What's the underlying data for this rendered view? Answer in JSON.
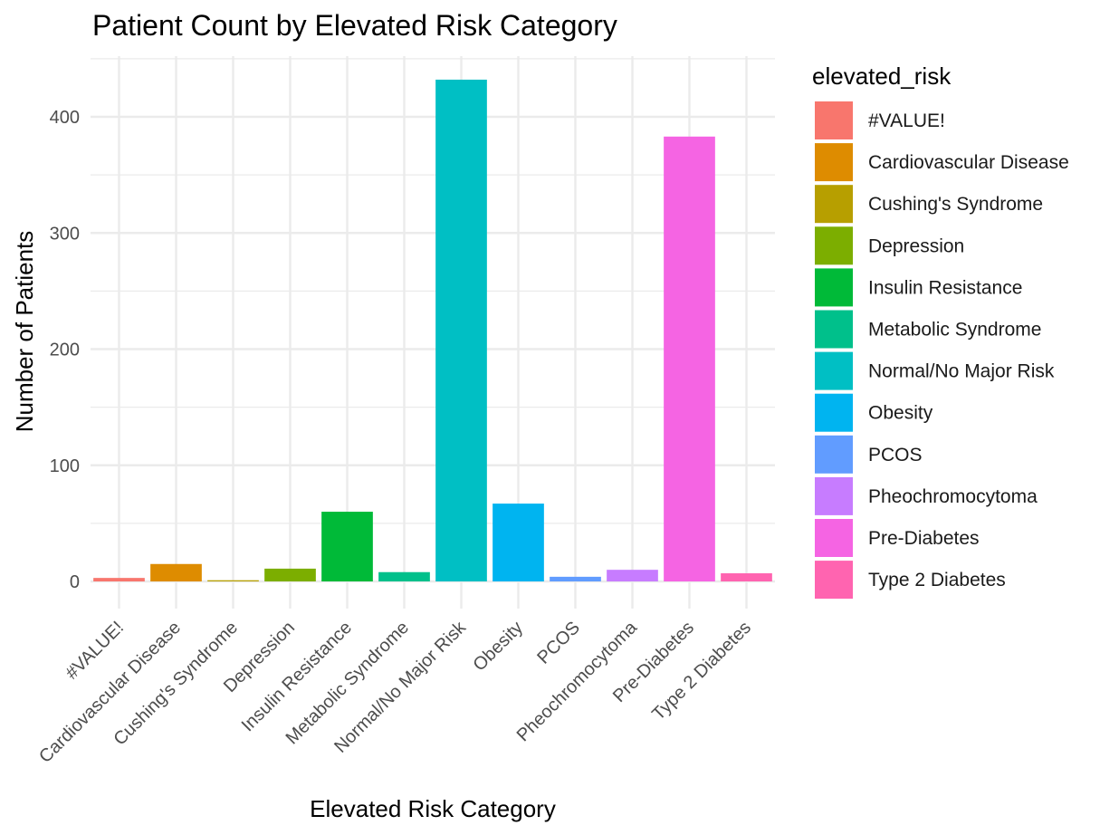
{
  "chart_data": {
    "type": "bar",
    "title": "Patient Count by Elevated Risk Category",
    "xlabel": "Elevated Risk Category",
    "ylabel": "Number of Patients",
    "ylim": [
      -20,
      452
    ],
    "y_ticks": [
      0,
      100,
      200,
      300,
      400
    ],
    "grid": true,
    "legend_title": "elevated_risk",
    "legend_position": "right",
    "categories": [
      "#VALUE!",
      "Cardiovascular Disease",
      "Cushing's Syndrome",
      "Depression",
      "Insulin Resistance",
      "Metabolic Syndrome",
      "Normal/No Major Risk",
      "Obesity",
      "PCOS",
      "Pheochromocytoma",
      "Pre-Diabetes",
      "Type 2 Diabetes"
    ],
    "values": [
      3,
      15,
      1,
      11,
      60,
      8,
      432,
      67,
      4,
      10,
      383,
      7
    ],
    "colors": [
      "#F8766D",
      "#DE8C00",
      "#B79F00",
      "#7CAE00",
      "#00BA38",
      "#00C08B",
      "#00BFC4",
      "#00B4F0",
      "#619CFF",
      "#C77CFF",
      "#F564E3",
      "#FF64B0"
    ]
  }
}
